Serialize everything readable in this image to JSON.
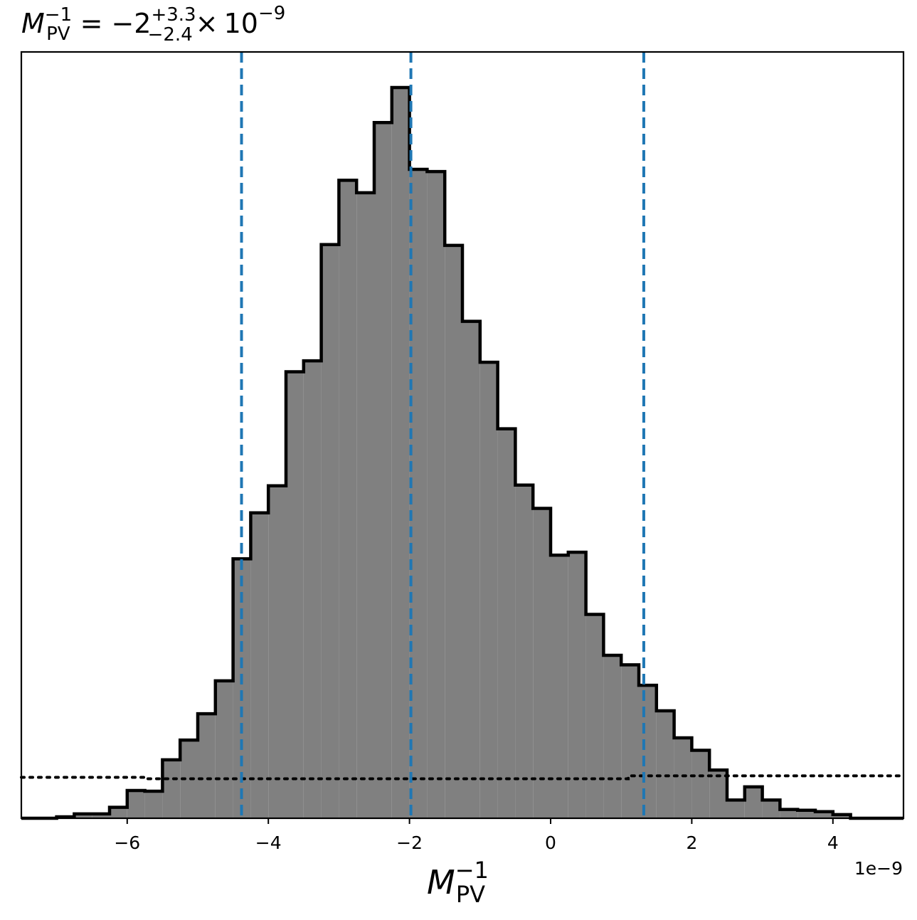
{
  "chart_data": {
    "type": "bar",
    "subtype": "histogram",
    "title": {
      "var": "M",
      "var_sub": "PV",
      "var_sup": "−1",
      "equals": "=",
      "base": "−2",
      "err_plus": "+3.3",
      "err_minus": "−2.4",
      "times": "×",
      "power_base": "10",
      "power_exp": "−9"
    },
    "xlabel": {
      "var": "M",
      "sub": "PV",
      "sup": "−1"
    },
    "x_offset_label": "1e−9",
    "xlim": [
      -7.5,
      5.0
    ],
    "ylim": [
      0,
      1.0
    ],
    "x_ticks": [
      -6,
      -4,
      -2,
      0,
      2,
      4
    ],
    "x_tick_labels": [
      "−6",
      "−4",
      "−2",
      "0",
      "2",
      "4"
    ],
    "bin_edges": [
      -7.5,
      -7.25,
      -7.0,
      -6.75,
      -6.5,
      -6.25,
      -6.0,
      -5.75,
      -5.5,
      -5.25,
      -5.0,
      -4.75,
      -4.5,
      -4.25,
      -4.0,
      -3.75,
      -3.5,
      -3.25,
      -3.0,
      -2.75,
      -2.5,
      -2.25,
      -2.0,
      -1.75,
      -1.5,
      -1.25,
      -1.0,
      -0.75,
      -0.5,
      -0.25,
      0.0,
      0.25,
      0.5,
      0.75,
      1.0,
      1.25,
      1.5,
      1.75,
      2.0,
      2.25,
      2.5,
      2.75,
      3.0,
      3.25,
      3.5,
      3.75,
      4.0,
      4.25,
      4.5,
      4.75,
      5.0
    ],
    "counts": [
      0.0,
      0.0,
      0.002,
      0.006,
      0.006,
      0.015,
      0.038,
      0.037,
      0.08,
      0.107,
      0.143,
      0.188,
      0.355,
      0.418,
      0.455,
      0.611,
      0.626,
      0.785,
      0.873,
      0.856,
      0.952,
      1.0,
      0.888,
      0.885,
      0.784,
      0.68,
      0.624,
      0.533,
      0.456,
      0.424,
      0.36,
      0.364,
      0.279,
      0.223,
      0.21,
      0.182,
      0.147,
      0.11,
      0.093,
      0.066,
      0.025,
      0.043,
      0.025,
      0.012,
      0.011,
      0.009,
      0.005,
      0.0,
      0.0,
      0.0
    ],
    "fill_color": "#808080",
    "edge_color": "#000000",
    "quantile_lines": [
      -4.38,
      -1.98,
      1.32
    ],
    "quantile_line_color": "#1f77b4",
    "prior_line": [
      {
        "x": -7.5,
        "y": 0.056
      },
      {
        "x": -5.75,
        "y": 0.056
      },
      {
        "x": -5.75,
        "y": 0.054
      },
      {
        "x": 1.1,
        "y": 0.054
      },
      {
        "x": 1.1,
        "y": 0.058
      },
      {
        "x": 5.0,
        "y": 0.058
      }
    ],
    "prior_line_color": "#000000",
    "grid": false,
    "legend": "none"
  }
}
